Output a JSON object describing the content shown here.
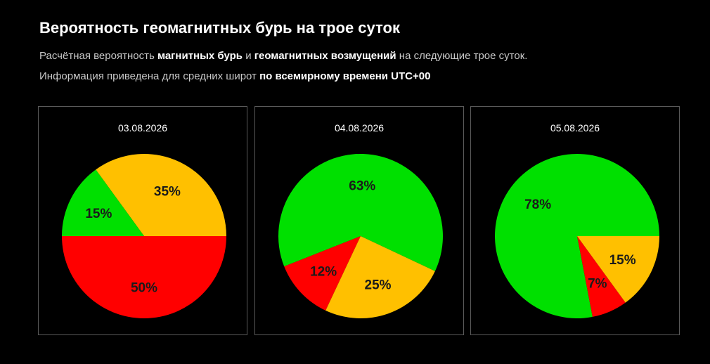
{
  "header": {
    "title": "Вероятность геомагнитных бурь на трое суток",
    "line1": {
      "p1": "Расчётная вероятность ",
      "b1": "магнитных бурь",
      "p2": " и ",
      "b2": "геомагнитных возмущений",
      "p3": " на следующие трое суток."
    },
    "line2": {
      "p1": "Информация приведена для средних широт ",
      "b1": "по всемирному времени UTC+00"
    }
  },
  "colors": {
    "green": "#00e000",
    "yellow": "#ffc000",
    "red": "#ff0000"
  },
  "chart_data": [
    {
      "type": "pie",
      "title": "03.08.2026",
      "start_angle_deg": 0,
      "slices": [
        {
          "value": 35,
          "label": "35%",
          "color": "yellow"
        },
        {
          "value": 15,
          "label": "15%",
          "color": "green"
        },
        {
          "value": 50,
          "label": "50%",
          "color": "red"
        }
      ]
    },
    {
      "type": "pie",
      "title": "04.08.2026",
      "start_angle_deg": -25.2,
      "slices": [
        {
          "value": 63,
          "label": "63%",
          "color": "green"
        },
        {
          "value": 12,
          "label": "12%",
          "color": "red"
        },
        {
          "value": 25,
          "label": "25%",
          "color": "yellow"
        }
      ]
    },
    {
      "type": "pie",
      "title": "05.08.2026",
      "start_angle_deg": 0,
      "slices": [
        {
          "value": 78,
          "label": "78%",
          "color": "green"
        },
        {
          "value": 7,
          "label": "7%",
          "color": "red"
        },
        {
          "value": 15,
          "label": "15%",
          "color": "yellow"
        }
      ]
    }
  ]
}
